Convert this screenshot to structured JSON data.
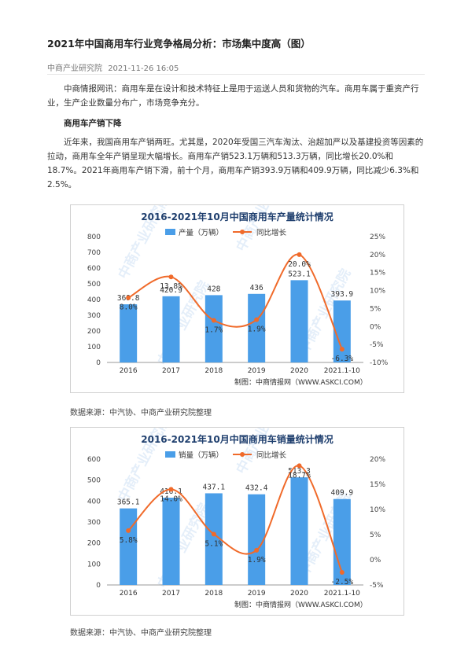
{
  "article": {
    "title": "2021年中国商用车行业竞争格局分析：市场集中度高（图）",
    "source": "中商产业研究院",
    "date": "2021-11-26 16:05",
    "para1": "中商情报网讯：商用车是在设计和技术特征上是用于运送人员和货物的汽车。商用车属于重资产行业，生产企业数量分布广，市场竞争充分。",
    "section_heading": "商用车产销下降",
    "para2": "近年来，我国商用车产销两旺。尤其是，2020年受国三汽车淘汰、治超加严以及基建投资等因素的拉动，商用车全年产销呈现大幅增长。商用车产销523.1万辆和513.3万辆，同比增长20.0%和18.7%。2021年商用车产销下滑，前十个月，商用车产销393.9万辆和409.9万辆，同比减少6.3%和2.5%。"
  },
  "watermark": "中商产业研究院",
  "chart_data": [
    {
      "type": "bar",
      "title": "2016-2021年10月中国商用车产量统计情况",
      "categories": [
        "2016",
        "2017",
        "2018",
        "2019",
        "2020",
        "2021.1-10"
      ],
      "series": [
        {
          "name": "产量（万辆）",
          "type": "bar",
          "axis": "left",
          "values": [
            369.8,
            420.9,
            428,
            436,
            523.1,
            393.9
          ],
          "labels": [
            "369.8",
            "420.9",
            "428",
            "436",
            "523.1",
            "393.9"
          ],
          "color": "#4a9ee8"
        },
        {
          "name": "同比增长",
          "type": "line",
          "axis": "right",
          "values": [
            8.0,
            13.8,
            1.7,
            1.9,
            20.0,
            -6.3
          ],
          "labels": [
            "8.0%",
            "13.8%",
            "1.7%",
            "1.9%",
            "20.0%",
            "-6.3%"
          ],
          "color": "#f06a2a"
        }
      ],
      "ylim_left": [
        0,
        800
      ],
      "yticks_left": [
        "0",
        "100",
        "200",
        "300",
        "400",
        "500",
        "600",
        "700",
        "800"
      ],
      "ylim_right": [
        -10,
        25
      ],
      "yticks_right": [
        "-10%",
        "-5%",
        "0%",
        "5%",
        "10%",
        "15%",
        "20%",
        "25%"
      ],
      "legend_position": "top",
      "grid": false,
      "footer": "制图：中商情报网（WWW.ASKCI.COM）",
      "source_note": "数据来源：中汽协、中商产业研究院整理"
    },
    {
      "type": "bar",
      "title": "2016-2021年10月中国商用车销量统计情况",
      "categories": [
        "2016",
        "2017",
        "2018",
        "2019",
        "2020",
        "2021.1-10"
      ],
      "series": [
        {
          "name": "销量（万辆）",
          "type": "bar",
          "axis": "left",
          "values": [
            365.1,
            416.1,
            437.1,
            432.4,
            513.3,
            409.9
          ],
          "labels": [
            "365.1",
            "416.1",
            "437.1",
            "432.4",
            "513.3",
            "409.9"
          ],
          "color": "#4a9ee8"
        },
        {
          "name": "同比增长",
          "type": "line",
          "axis": "right",
          "values": [
            5.8,
            14.0,
            5.1,
            1.9,
            18.7,
            -2.5
          ],
          "labels": [
            "5.8%",
            "14.0%",
            "5.1%",
            "1.9%",
            "18.7%",
            "-2.5%"
          ],
          "color": "#f06a2a"
        }
      ],
      "ylim_left": [
        0,
        600
      ],
      "yticks_left": [
        "0",
        "100",
        "200",
        "300",
        "400",
        "500",
        "600"
      ],
      "ylim_right": [
        -5,
        20
      ],
      "yticks_right": [
        "-5%",
        "0%",
        "5%",
        "10%",
        "15%",
        "20%"
      ],
      "legend_position": "top",
      "grid": false,
      "footer": "制图：中商情报网（WWW.ASKCI.COM）",
      "source_note": "数据来源：中汽协、中商产业研究院整理"
    }
  ]
}
